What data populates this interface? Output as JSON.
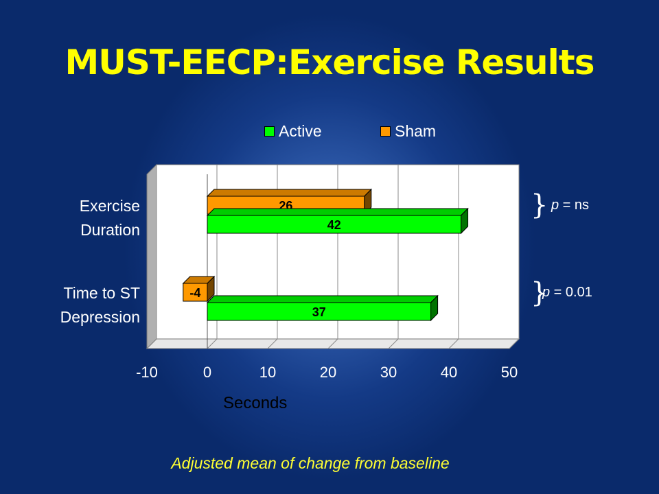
{
  "title": "MUST-EECP:Exercise Results",
  "footnote": "Adjusted mean of change from baseline",
  "colors": {
    "background": "#0a2a6b",
    "title": "#ffff00",
    "active": "#00ff00",
    "sham": "#ff9900"
  },
  "annotations": [
    {
      "prefix": "p",
      "text": " = ns"
    },
    {
      "prefix": "p",
      "text": " = 0.01"
    }
  ],
  "chart_data": {
    "type": "bar",
    "orientation": "horizontal",
    "style": "3d",
    "categories": [
      "Exercise Duration",
      "Time to ST Depression"
    ],
    "category_lines": [
      [
        "Exercise",
        "Duration"
      ],
      [
        "Time to ST",
        "Depression"
      ]
    ],
    "series": [
      {
        "name": "Sham",
        "values": [
          26,
          -4
        ]
      },
      {
        "name": "Active",
        "values": [
          42,
          37
        ]
      }
    ],
    "xlabel": "Seconds",
    "xlim": [
      -10,
      50
    ],
    "xticks": [
      -10,
      0,
      10,
      20,
      30,
      40,
      50
    ],
    "grid": true,
    "legend": "top"
  }
}
